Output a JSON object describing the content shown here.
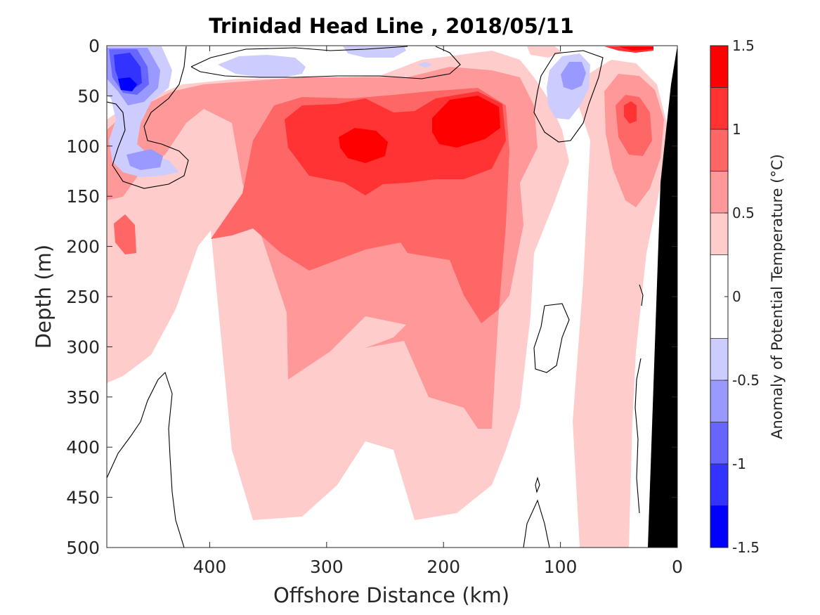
{
  "chart_data": {
    "type": "heatmap",
    "title": "Trinidad Head Line , 2018/05/11",
    "xlabel": "Offshore Distance (km)",
    "ylabel": "Depth (m)",
    "xlim": [
      488,
      0
    ],
    "ylim": [
      0,
      500
    ],
    "x_ticks": [
      {
        "value": 400,
        "label": "400"
      },
      {
        "value": 300,
        "label": "300"
      },
      {
        "value": 200,
        "label": "200"
      },
      {
        "value": 100,
        "label": "100"
      },
      {
        "value": 0,
        "label": "0"
      }
    ],
    "y_ticks": [
      {
        "value": 0,
        "label": "0"
      },
      {
        "value": 50,
        "label": "50"
      },
      {
        "value": 100,
        "label": "100"
      },
      {
        "value": 150,
        "label": "150"
      },
      {
        "value": 200,
        "label": "200"
      },
      {
        "value": 250,
        "label": "250"
      },
      {
        "value": 300,
        "label": "300"
      },
      {
        "value": 350,
        "label": "350"
      },
      {
        "value": 400,
        "label": "400"
      },
      {
        "value": 450,
        "label": "450"
      },
      {
        "value": 500,
        "label": "500"
      }
    ],
    "colorbar": {
      "label": "Anomaly of Potential Temperature (°C)",
      "range": [
        -1.5,
        1.5
      ],
      "ticks": [
        {
          "value": 1.5,
          "label": "1.5"
        },
        {
          "value": 1,
          "label": "1"
        },
        {
          "value": 0.5,
          "label": "0.5"
        },
        {
          "value": 0,
          "label": "0"
        },
        {
          "value": -0.5,
          "label": "-0.5"
        },
        {
          "value": -1,
          "label": "-1"
        },
        {
          "value": -1.5,
          "label": "-1.5"
        }
      ],
      "levels": [
        {
          "from": 1.25,
          "to": 1.5,
          "color": "#ff0000"
        },
        {
          "from": 1.0,
          "to": 1.25,
          "color": "#ff3333"
        },
        {
          "from": 0.75,
          "to": 1.0,
          "color": "#ff6666"
        },
        {
          "from": 0.5,
          "to": 0.75,
          "color": "#ff9999"
        },
        {
          "from": 0.25,
          "to": 0.5,
          "color": "#ffcccc"
        },
        {
          "from": -0.25,
          "to": 0.25,
          "color": "#ffffff"
        },
        {
          "from": -0.5,
          "to": -0.25,
          "color": "#ccccff"
        },
        {
          "from": -0.75,
          "to": -0.5,
          "color": "#9999ff"
        },
        {
          "from": -1.0,
          "to": -0.75,
          "color": "#6666ff"
        },
        {
          "from": -1.25,
          "to": -1.0,
          "color": "#3333ff"
        },
        {
          "from": -1.5,
          "to": -1.25,
          "color": "#0000ff"
        }
      ]
    },
    "field": [
      {
        "x": 470,
        "depth": 40,
        "anomaly": -1.2,
        "rx": 25,
        "rdepth": 40
      },
      {
        "x": 455,
        "depth": 110,
        "anomaly": -0.7,
        "rx": 40,
        "rdepth": 25
      },
      {
        "x": 380,
        "depth": 25,
        "anomaly": -0.4,
        "rx": 55,
        "rdepth": 15
      },
      {
        "x": 95,
        "depth": 50,
        "anomaly": -0.6,
        "rx": 20,
        "rdepth": 40
      },
      {
        "x": 30,
        "depth": 5,
        "anomaly": 1.4,
        "rx": 20,
        "rdepth": 10
      },
      {
        "x": 40,
        "depth": 100,
        "anomaly": 0.9,
        "rx": 30,
        "rdepth": 60
      },
      {
        "x": 270,
        "depth": 110,
        "anomaly": 1.3,
        "rx": 50,
        "rdepth": 40
      },
      {
        "x": 180,
        "depth": 90,
        "anomaly": 1.4,
        "rx": 45,
        "rdepth": 45
      },
      {
        "x": 240,
        "depth": 190,
        "anomaly": 0.9,
        "rx": 110,
        "rdepth": 90
      },
      {
        "x": 230,
        "depth": 300,
        "anomaly": 0.6,
        "rx": 110,
        "rdepth": 120
      },
      {
        "x": 470,
        "depth": 210,
        "anomaly": 0.7,
        "rx": 40,
        "rdepth": 80
      },
      {
        "x": 240,
        "depth": 400,
        "anomaly": 0.3,
        "rx": 140,
        "rdepth": 150
      },
      {
        "x": 60,
        "depth": 350,
        "anomaly": 0.3,
        "rx": 30,
        "rdepth": 300
      }
    ],
    "land_mask": "black region at the coast (x near 0, all depths)",
    "zero_contours": true,
    "grid": false
  }
}
